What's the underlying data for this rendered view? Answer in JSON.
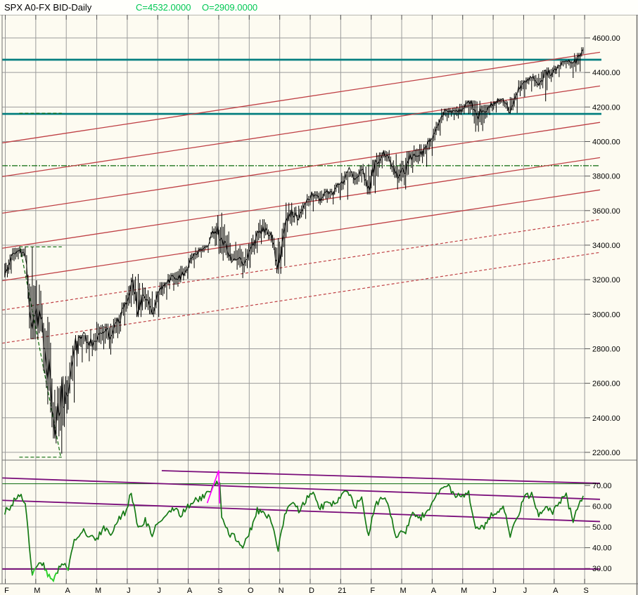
{
  "header": {
    "symbol": "SPX A0-FX BID-Daily",
    "close_label": "C=4532.0000",
    "open_label": "O=2909.0000"
  },
  "colors": {
    "background": "#fdfbf1",
    "header_background": "#fffffb",
    "grid": "#9b9b9b",
    "frame": "#707070",
    "bars": "#000000",
    "teal_level": "#057f80",
    "red_trend": "#bf4045",
    "green_dashdot": "#0a6a0a",
    "oscillator_green": "#157a15",
    "oscillator_lime": "#2cd42c",
    "purple_trend": "#7a0d7a",
    "magenta_spike": "#ff00ff",
    "header_value_green": "#00c853"
  },
  "price_axis": {
    "tick_values": [
      4600,
      4400,
      4200,
      4000,
      3800,
      3600,
      3400,
      3200,
      3000,
      2800,
      2600,
      2400,
      2200
    ],
    "tick_labels": [
      "4600.00",
      "4400.00",
      "4200.00",
      "4000.00",
      "3800.00",
      "3600.00",
      "3400.00",
      "3200.00",
      "3000.00",
      "2800.00",
      "2600.00",
      "2400.00",
      "2200.00"
    ]
  },
  "indicator_axis": {
    "tick_values": [
      70,
      60,
      50,
      40,
      30
    ],
    "tick_labels": [
      "70.00",
      "60.00",
      "50.00",
      "40.00",
      "30.00"
    ]
  },
  "time_axis": {
    "tick_labels": [
      "F",
      "M",
      "A",
      "M",
      "J",
      "J",
      "A",
      "S",
      "O",
      "N",
      "D",
      "21",
      "F",
      "M",
      "A",
      "M",
      "J",
      "J",
      "A",
      "S"
    ]
  },
  "chart_data": [
    {
      "type": "ohlc",
      "panel": "price",
      "title": "SPX A0-FX BID-Daily",
      "x_range": [
        "2020-01-31",
        "2021-09-03"
      ],
      "ylim": [
        2155,
        4725
      ],
      "grid": true,
      "weekly_bars": [
        [
          "2020-01-31",
          3214,
          3294,
          3226
        ],
        [
          "2020-02-07",
          3235,
          3348,
          3327
        ],
        [
          "2020-02-14",
          3318,
          3385,
          3380
        ],
        [
          "2020-02-21",
          3328,
          3393,
          3338
        ],
        [
          "2020-02-28",
          2855,
          3390,
          2954
        ],
        [
          "2020-03-06",
          2901,
          3136,
          2972
        ],
        [
          "2020-03-13",
          2478,
          2985,
          2711
        ],
        [
          "2020-03-20",
          2280,
          2562,
          2305
        ],
        [
          "2020-03-27",
          2192,
          2637,
          2541
        ],
        [
          "2020-04-03",
          2447,
          2641,
          2489
        ],
        [
          "2020-04-09",
          2488,
          2818,
          2790
        ],
        [
          "2020-04-17",
          2721,
          2879,
          2875
        ],
        [
          "2020-04-24",
          2727,
          2842,
          2837
        ],
        [
          "2020-05-01",
          2790,
          2955,
          2831
        ],
        [
          "2020-05-08",
          2797,
          2932,
          2930
        ],
        [
          "2020-05-15",
          2766,
          2945,
          2864
        ],
        [
          "2020-05-22",
          2861,
          2980,
          2955
        ],
        [
          "2020-05-29",
          2934,
          3068,
          3044
        ],
        [
          "2020-06-05",
          3042,
          3212,
          3194
        ],
        [
          "2020-06-12",
          2984,
          3233,
          3041
        ],
        [
          "2020-06-19",
          3027,
          3155,
          3098
        ],
        [
          "2020-06-26",
          2999,
          3132,
          3009
        ],
        [
          "2020-07-02",
          2984,
          3130,
          3130
        ],
        [
          "2020-07-10",
          3084,
          3186,
          3185
        ],
        [
          "2020-07-17",
          3136,
          3238,
          3225
        ],
        [
          "2020-07-24",
          3184,
          3280,
          3216
        ],
        [
          "2020-07-31",
          3205,
          3273,
          3271
        ],
        [
          "2020-08-07",
          3267,
          3353,
          3351
        ],
        [
          "2020-08-14",
          3327,
          3387,
          3373
        ],
        [
          "2020-08-21",
          3355,
          3399,
          3397
        ],
        [
          "2020-08-28",
          3395,
          3509,
          3508
        ],
        [
          "2020-09-04",
          3349,
          3588,
          3427
        ],
        [
          "2020-09-11",
          3310,
          3479,
          3341
        ],
        [
          "2020-09-18",
          3310,
          3419,
          3319
        ],
        [
          "2020-09-25",
          3209,
          3362,
          3298
        ],
        [
          "2020-10-02",
          3268,
          3409,
          3348
        ],
        [
          "2020-10-09",
          3354,
          3482,
          3477
        ],
        [
          "2020-10-16",
          3440,
          3550,
          3484
        ],
        [
          "2020-10-23",
          3415,
          3478,
          3465
        ],
        [
          "2020-10-30",
          3234,
          3441,
          3270
        ],
        [
          "2020-11-06",
          3279,
          3529,
          3509
        ],
        [
          "2020-11-13",
          3512,
          3646,
          3585
        ],
        [
          "2020-11-20",
          3543,
          3628,
          3558
        ],
        [
          "2020-11-27",
          3552,
          3646,
          3638
        ],
        [
          "2020-12-04",
          3595,
          3700,
          3699
        ],
        [
          "2020-12-11",
          3633,
          3712,
          3663
        ],
        [
          "2020-12-18",
          3645,
          3726,
          3709
        ],
        [
          "2020-12-24",
          3636,
          3711,
          3703
        ],
        [
          "2020-12-31",
          3662,
          3760,
          3756
        ],
        [
          "2021-01-08",
          3663,
          3827,
          3825
        ],
        [
          "2021-01-15",
          3749,
          3826,
          3768
        ],
        [
          "2021-01-22",
          3763,
          3861,
          3841
        ],
        [
          "2021-01-29",
          3694,
          3870,
          3714
        ],
        [
          "2021-02-05",
          3700,
          3894,
          3887
        ],
        [
          "2021-02-12",
          3845,
          3937,
          3935
        ],
        [
          "2021-02-19",
          3885,
          3950,
          3907
        ],
        [
          "2021-02-26",
          3789,
          3928,
          3811
        ],
        [
          "2021-03-05",
          3723,
          3906,
          3842
        ],
        [
          "2021-03-12",
          3819,
          3944,
          3943
        ],
        [
          "2021-03-19",
          3886,
          3984,
          3913
        ],
        [
          "2021-03-26",
          3854,
          3978,
          3975
        ],
        [
          "2021-04-01",
          3917,
          4020,
          4020
        ],
        [
          "2021-04-09",
          4034,
          4129,
          4129
        ],
        [
          "2021-04-16",
          4118,
          4191,
          4185
        ],
        [
          "2021-04-23",
          4124,
          4194,
          4180
        ],
        [
          "2021-04-30",
          4154,
          4218,
          4181
        ],
        [
          "2021-05-07",
          4160,
          4238,
          4233
        ],
        [
          "2021-05-14",
          4057,
          4236,
          4174
        ],
        [
          "2021-05-21",
          4061,
          4209,
          4156
        ],
        [
          "2021-05-28",
          4153,
          4213,
          4204
        ],
        [
          "2021-06-04",
          4168,
          4233,
          4230
        ],
        [
          "2021-06-11",
          4206,
          4249,
          4247
        ],
        [
          "2021-06-18",
          4164,
          4258,
          4166
        ],
        [
          "2021-06-25",
          4165,
          4286,
          4281
        ],
        [
          "2021-07-02",
          4257,
          4355,
          4352
        ],
        [
          "2021-07-09",
          4289,
          4371,
          4370
        ],
        [
          "2021-07-16",
          4322,
          4393,
          4327
        ],
        [
          "2021-07-23",
          4233,
          4415,
          4412
        ],
        [
          "2021-07-30",
          4372,
          4429,
          4395
        ],
        [
          "2021-08-06",
          4373,
          4440,
          4437
        ],
        [
          "2021-08-13",
          4424,
          4468,
          4468
        ],
        [
          "2021-08-20",
          4368,
          4462,
          4442
        ],
        [
          "2021-08-27",
          4405,
          4513,
          4509
        ],
        [
          "2021-09-03",
          4507,
          4546,
          4535
        ]
      ],
      "annotations": {
        "teal_levels": [
          4474,
          4160
        ],
        "green_dashdot_level": 3860,
        "red_fork_solid": [
          [
            3992,
            4517
          ],
          [
            3797,
            4322
          ],
          [
            3585,
            4111
          ],
          [
            3382,
            3907
          ],
          [
            3194,
            3720
          ]
        ],
        "red_fork_dashed": [
          [
            3024,
            3549
          ],
          [
            2832,
            3358
          ]
        ],
        "green_segments": [
          {
            "x1": "2020-02-15",
            "x2": "2020-03-27",
            "p1": 3390,
            "p2": 3390
          },
          {
            "x1": "2020-02-15",
            "x2": "2020-03-27",
            "p1": 2172,
            "p2": 2172
          },
          {
            "x1": "2020-02-15",
            "x2": "2020-03-27",
            "p1": 4164,
            "p2": 4164
          },
          {
            "x1": "2020-02-16",
            "x2": "2020-03-26",
            "p1": 3382,
            "p2": 2172
          }
        ]
      }
    },
    {
      "type": "line",
      "panel": "oscillator",
      "ylim": [
        23,
        82
      ],
      "grid": true,
      "series": [
        {
          "name": "oscillator-green",
          "points": [
            [
              "2020-01-31",
              57
            ],
            [
              "2020-02-07",
              60
            ],
            [
              "2020-02-14",
              66
            ],
            [
              "2020-02-21",
              62
            ],
            [
              "2020-02-28",
              26
            ],
            [
              "2020-03-06",
              34
            ],
            [
              "2020-03-13",
              27
            ],
            [
              "2020-03-20",
              25
            ],
            [
              "2020-03-27",
              33
            ],
            [
              "2020-04-03",
              30
            ],
            [
              "2020-04-09",
              43
            ],
            [
              "2020-04-17",
              48
            ],
            [
              "2020-04-24",
              46
            ],
            [
              "2020-05-01",
              44
            ],
            [
              "2020-05-08",
              50
            ],
            [
              "2020-05-15",
              47
            ],
            [
              "2020-05-22",
              53
            ],
            [
              "2020-05-29",
              57
            ],
            [
              "2020-06-05",
              66
            ],
            [
              "2020-06-12",
              49
            ],
            [
              "2020-06-19",
              53
            ],
            [
              "2020-06-26",
              46
            ],
            [
              "2020-07-02",
              53
            ],
            [
              "2020-07-10",
              56
            ],
            [
              "2020-07-17",
              59
            ],
            [
              "2020-07-24",
              56
            ],
            [
              "2020-07-31",
              60
            ],
            [
              "2020-08-07",
              63
            ],
            [
              "2020-08-14",
              64
            ],
            [
              "2020-08-21",
              66
            ],
            [
              "2020-08-28",
              71
            ],
            [
              "2020-09-02",
              72
            ],
            [
              "2020-09-04",
              56
            ],
            [
              "2020-09-11",
              47
            ],
            [
              "2020-09-18",
              45
            ],
            [
              "2020-09-25",
              41
            ],
            [
              "2020-10-02",
              48
            ],
            [
              "2020-10-09",
              58
            ],
            [
              "2020-10-16",
              57
            ],
            [
              "2020-10-23",
              53
            ],
            [
              "2020-10-30",
              39
            ],
            [
              "2020-11-06",
              56
            ],
            [
              "2020-11-13",
              61
            ],
            [
              "2020-11-20",
              58
            ],
            [
              "2020-11-27",
              63
            ],
            [
              "2020-12-04",
              66
            ],
            [
              "2020-12-11",
              59
            ],
            [
              "2020-12-18",
              62
            ],
            [
              "2020-12-24",
              61
            ],
            [
              "2020-12-31",
              64
            ],
            [
              "2021-01-08",
              68
            ],
            [
              "2021-01-15",
              60
            ],
            [
              "2021-01-22",
              63
            ],
            [
              "2021-01-29",
              46
            ],
            [
              "2021-02-05",
              60
            ],
            [
              "2021-02-12",
              65
            ],
            [
              "2021-02-19",
              59
            ],
            [
              "2021-02-26",
              46
            ],
            [
              "2021-03-05",
              48
            ],
            [
              "2021-03-12",
              58
            ],
            [
              "2021-03-19",
              54
            ],
            [
              "2021-03-26",
              57
            ],
            [
              "2021-04-01",
              62
            ],
            [
              "2021-04-09",
              68
            ],
            [
              "2021-04-16",
              70
            ],
            [
              "2021-04-23",
              66
            ],
            [
              "2021-04-30",
              64
            ],
            [
              "2021-05-07",
              66
            ],
            [
              "2021-05-14",
              50
            ],
            [
              "2021-05-21",
              49
            ],
            [
              "2021-05-28",
              55
            ],
            [
              "2021-06-04",
              57
            ],
            [
              "2021-06-11",
              60
            ],
            [
              "2021-06-18",
              46
            ],
            [
              "2021-06-25",
              55
            ],
            [
              "2021-07-02",
              64
            ],
            [
              "2021-07-09",
              66
            ],
            [
              "2021-07-16",
              55
            ],
            [
              "2021-07-23",
              61
            ],
            [
              "2021-07-30",
              57
            ],
            [
              "2021-08-06",
              62
            ],
            [
              "2021-08-13",
              65
            ],
            [
              "2021-08-20",
              53
            ],
            [
              "2021-08-27",
              63
            ],
            [
              "2021-09-03",
              65
            ]
          ]
        }
      ],
      "annotations": {
        "oversold_lime_threshold": 30.5,
        "green_level": 70.8,
        "purple_lines": [
          {
            "v1": 73.6,
            "v2": 63.3
          },
          {
            "v1": 62.8,
            "v2": 52.6
          },
          {
            "from": "2020-07-05",
            "v1": 77.1,
            "v2": 71.0
          },
          {
            "v1": 29.7,
            "v2": 29.7
          }
        ],
        "magenta_spike": [
          [
            "2020-08-20",
            61.5
          ],
          [
            "2020-09-01",
            77.2
          ],
          [
            "2020-09-02",
            61.3
          ]
        ]
      }
    }
  ]
}
